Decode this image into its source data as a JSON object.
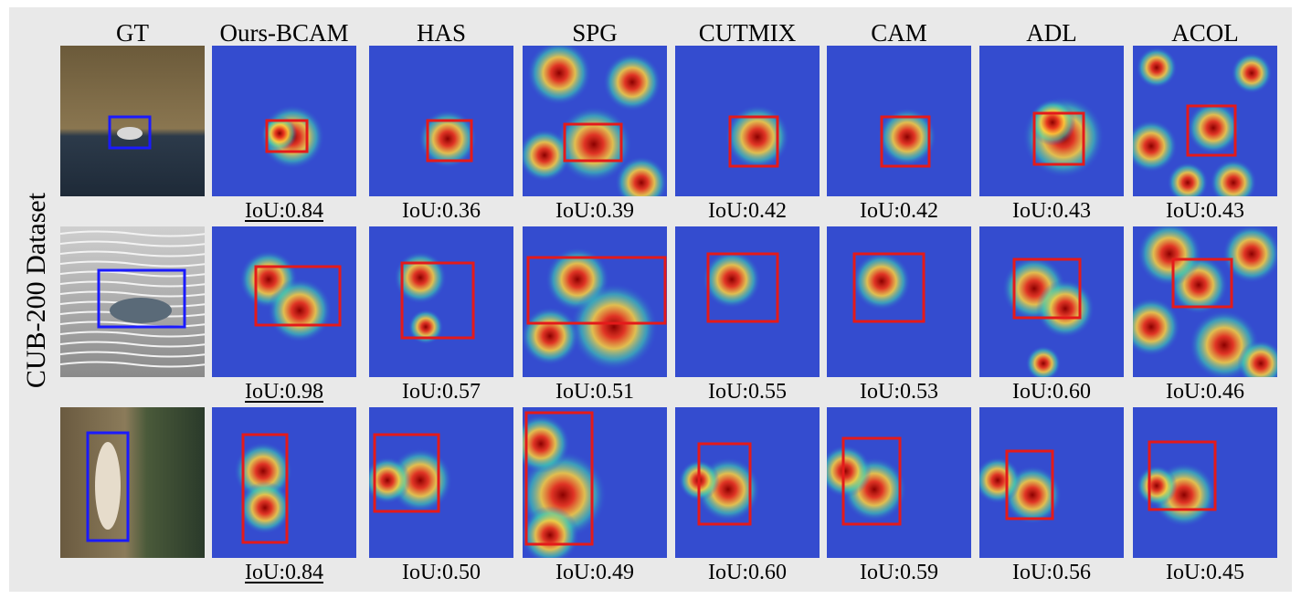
{
  "figure": {
    "row_label": "CUB-200 Dataset",
    "columns": [
      "GT",
      "Ours-BCAM",
      "HAS",
      "SPG",
      "CUTMIX",
      "CAM",
      "ADL",
      "ACOL"
    ],
    "rows": [
      {
        "scene": "water",
        "iou": [
          "IoU:0.84",
          "IoU:0.36",
          "IoU:0.39",
          "IoU:0.42",
          "IoU:0.42",
          "IoU:0.43",
          "IoU:0.43"
        ]
      },
      {
        "scene": "ripple",
        "iou": [
          "IoU:0.98",
          "IoU:0.57",
          "IoU:0.51",
          "IoU:0.55",
          "IoU:0.53",
          "IoU:0.60",
          "IoU:0.46"
        ]
      },
      {
        "scene": "bark",
        "iou": [
          "IoU:0.84",
          "IoU:0.50",
          "IoU:0.49",
          "IoU:0.60",
          "IoU:0.59",
          "IoU:0.56",
          "IoU:0.45"
        ]
      }
    ],
    "colors": {
      "gt_box": "#1a1aff",
      "pred_box": "#e41a1a",
      "background": "#e9e9e9"
    }
  }
}
